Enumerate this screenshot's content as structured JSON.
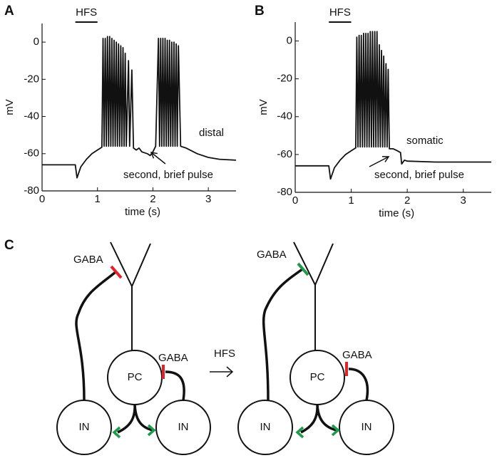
{
  "panel_labels": [
    "A",
    "B",
    "C"
  ],
  "chart_data": [
    {
      "type": "line",
      "xlabel": "time (s)",
      "ylabel": "mV",
      "annotation": "distal",
      "arrow_label": "second, brief pulse",
      "hfs_label": "HFS",
      "hfs_interval": [
        0.6,
        1.0
      ],
      "color": "#111111",
      "xlim": [
        0,
        3.5
      ],
      "ylim": [
        -80,
        10
      ],
      "xticks": [
        0,
        1,
        2,
        3
      ],
      "yticks": [
        -80,
        -60,
        -40,
        -20,
        0
      ],
      "x": [
        0,
        0.6,
        0.63,
        0.7,
        0.8,
        0.9,
        1.0,
        1.08,
        1.1,
        1.12,
        1.14,
        1.16,
        1.18,
        1.2,
        1.22,
        1.24,
        1.26,
        1.28,
        1.3,
        1.32,
        1.34,
        1.36,
        1.38,
        1.4,
        1.42,
        1.44,
        1.46,
        1.48,
        1.5,
        1.52,
        1.56,
        1.58,
        1.62,
        1.65,
        1.7,
        1.75,
        1.8,
        1.9,
        1.95,
        2.0,
        2.05,
        2.1,
        2.12,
        2.14,
        2.16,
        2.18,
        2.2,
        2.22,
        2.24,
        2.26,
        2.28,
        2.3,
        2.32,
        2.34,
        2.36,
        2.38,
        2.4,
        2.42,
        2.44,
        2.46,
        2.5,
        2.6,
        2.8,
        3.0,
        3.2,
        3.5
      ],
      "values": [
        -66,
        -66,
        -73,
        -67,
        -63,
        -60,
        -58,
        -56.5,
        2,
        -56,
        2,
        -56,
        3,
        -56,
        3,
        -56,
        2,
        -56,
        1,
        -56,
        0,
        -56,
        -1,
        -56,
        -2,
        -56,
        -3,
        -56,
        -6,
        -56,
        -10,
        -56,
        -15,
        -57,
        -58,
        -57,
        -59,
        -60,
        -61,
        -59,
        -56,
        2,
        -56,
        2,
        -56,
        2,
        -56,
        2,
        -56,
        1,
        -56,
        1,
        -56,
        0,
        -56,
        0,
        -56,
        -1,
        -56,
        -2,
        -56,
        -57,
        -60,
        -62,
        -63,
        -63.5
      ]
    },
    {
      "type": "line",
      "xlabel": "time (s)",
      "ylabel": "mV",
      "annotation": "somatic",
      "arrow_label": "second, brief pulse",
      "hfs_label": "HFS",
      "hfs_interval": [
        0.6,
        1.0
      ],
      "color": "#111111",
      "xlim": [
        0,
        3.5
      ],
      "ylim": [
        -80,
        10
      ],
      "xticks": [
        0,
        1,
        2,
        3
      ],
      "yticks": [
        -80,
        -60,
        -40,
        -20,
        0
      ],
      "x": [
        0,
        0.6,
        0.63,
        0.7,
        0.8,
        0.9,
        1.0,
        1.08,
        1.1,
        1.12,
        1.14,
        1.16,
        1.18,
        1.2,
        1.22,
        1.24,
        1.26,
        1.28,
        1.3,
        1.32,
        1.34,
        1.36,
        1.38,
        1.4,
        1.42,
        1.44,
        1.46,
        1.48,
        1.5,
        1.52,
        1.54,
        1.56,
        1.58,
        1.6,
        1.62,
        1.64,
        1.66,
        1.68,
        1.75,
        1.82,
        1.88,
        1.9,
        1.95,
        2.0,
        2.5,
        3.5
      ],
      "values": [
        -66,
        -66,
        -73,
        -67,
        -63,
        -60,
        -58,
        -56.5,
        2,
        -56,
        3,
        -56,
        3,
        -56,
        4,
        -56,
        4,
        -56,
        4,
        -56,
        5,
        -56,
        5,
        -56,
        5,
        -56,
        5,
        -56,
        -2,
        -56,
        -5,
        -56,
        -8,
        -56,
        -12,
        -56,
        -15,
        -57,
        -57,
        -58,
        -59,
        -65,
        -63,
        -63.5,
        -64,
        -64
      ]
    }
  ],
  "diagram": {
    "arrow_label": "HFS",
    "before": {
      "gaba_dendrite": "GABA",
      "gaba_soma": "GABA",
      "pc": "PC",
      "in_left": "IN",
      "in_right": "IN"
    },
    "after": {
      "gaba_dendrite": "GABA",
      "gaba_soma": "GABA",
      "pc": "PC",
      "in_left": "IN",
      "in_right": "IN"
    }
  }
}
